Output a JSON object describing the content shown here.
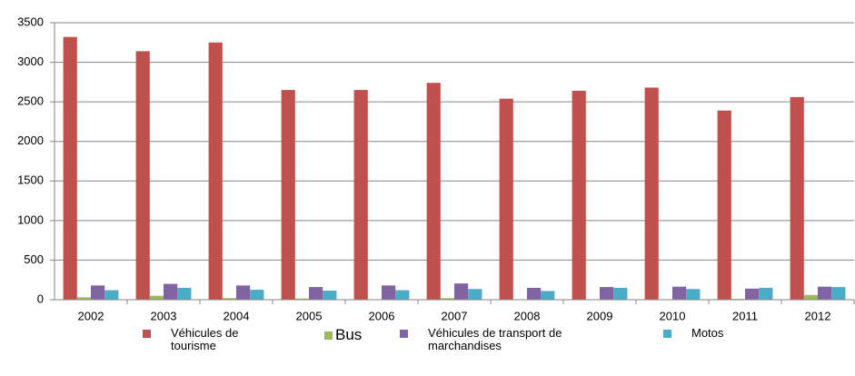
{
  "chart_data": {
    "type": "bar",
    "categories": [
      "2002",
      "2003",
      "2004",
      "2005",
      "2006",
      "2007",
      "2008",
      "2009",
      "2010",
      "2011",
      "2012"
    ],
    "series": [
      {
        "name": "Véhicules de tourisme",
        "color": "#c0504d",
        "values": [
          3320,
          3140,
          3250,
          2650,
          2650,
          2740,
          2540,
          2640,
          2680,
          2390,
          2560
        ]
      },
      {
        "name": "Bus",
        "color": "#9bbb59",
        "values": [
          30,
          50,
          20,
          15,
          5,
          20,
          5,
          5,
          5,
          10,
          60
        ]
      },
      {
        "name": "Véhicules de transport de marchandises",
        "color": "#8064a2",
        "values": [
          180,
          200,
          180,
          160,
          180,
          205,
          150,
          160,
          165,
          140,
          165
        ]
      },
      {
        "name": "Motos",
        "color": "#4bacc6",
        "values": [
          120,
          150,
          125,
          115,
          120,
          135,
          110,
          150,
          135,
          150,
          160
        ]
      }
    ],
    "ylim": [
      0,
      3500
    ],
    "yticks": [
      0,
      500,
      1000,
      1500,
      2000,
      2500,
      3000,
      3500
    ],
    "grid": true,
    "legend": "bottom"
  }
}
